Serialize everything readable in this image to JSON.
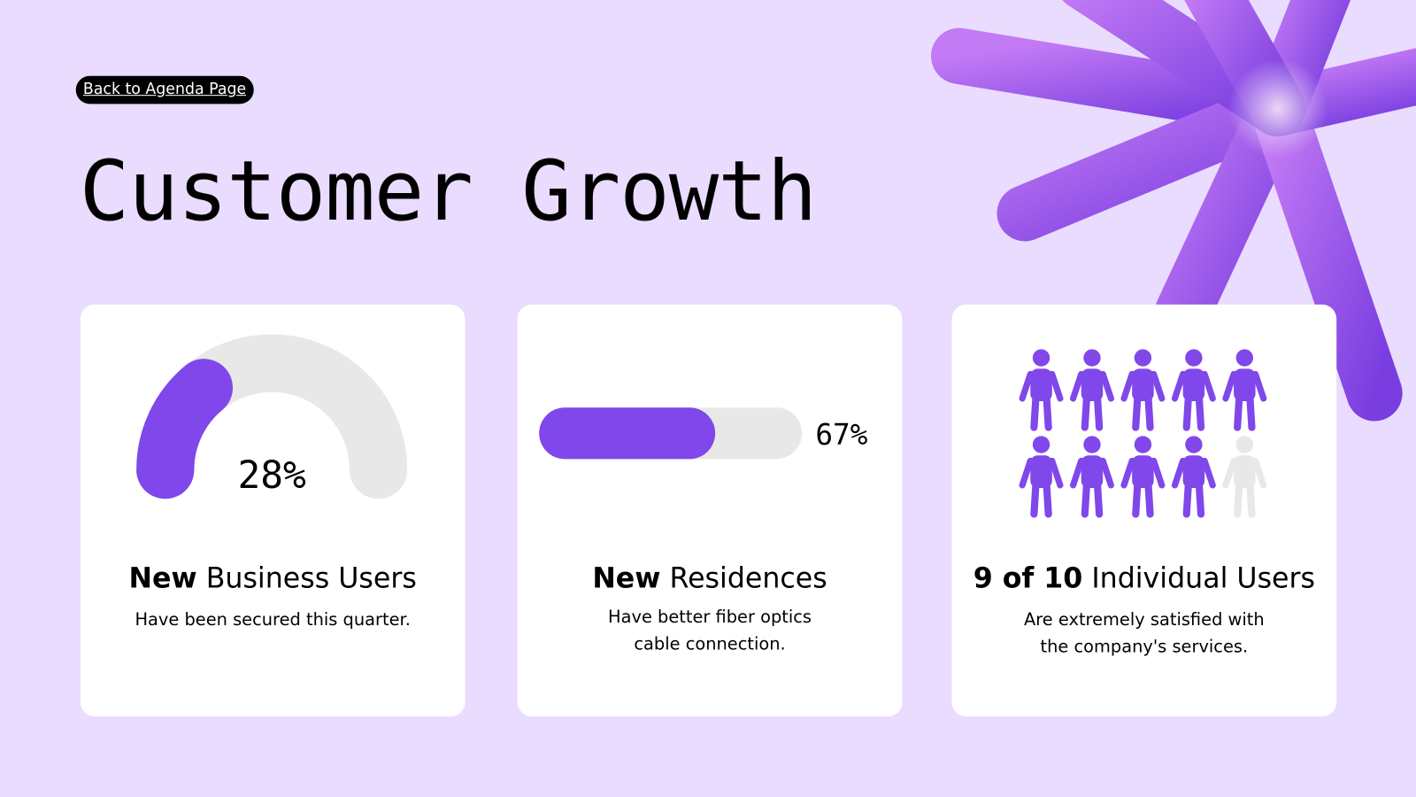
{
  "back_link": "Back to Agenda Page",
  "title": "Customer Growth",
  "cards": [
    {
      "value": 28,
      "value_label": "28%",
      "heading_bold": "New",
      "heading_rest": "Business Users",
      "description_lines": [
        "Have been secured this quarter."
      ]
    },
    {
      "value": 67,
      "value_label": "67%",
      "heading_bold": "New",
      "heading_rest": "Residences",
      "description_lines": [
        "Have better fiber optics",
        "cable connection."
      ]
    },
    {
      "value": 9,
      "total": 10,
      "heading_bold": "9 of 10",
      "heading_rest": "Individual Users",
      "description_lines": [
        "Are extremely satisfied with",
        "the company's services."
      ]
    }
  ]
}
